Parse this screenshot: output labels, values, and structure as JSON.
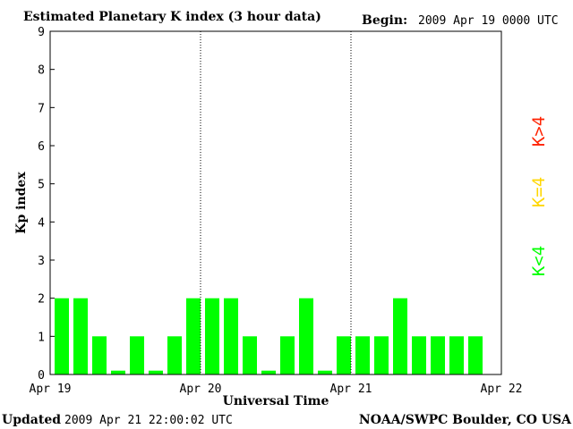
{
  "header": {
    "title": "Estimated Planetary K index (3 hour data)",
    "begin_label": "Begin:",
    "begin_value": "2009 Apr 19 0000 UTC"
  },
  "footer": {
    "updated_label": "Updated",
    "updated_value": "2009 Apr 21 22:00:02 UTC",
    "source": "NOAA/SWPC Boulder, CO USA"
  },
  "legend": [
    {
      "label": "K<4",
      "color": "#00ff00"
    },
    {
      "label": "K=4",
      "color": "#ffd700"
    },
    {
      "label": "K>4",
      "color": "#ff2200"
    }
  ],
  "chart_data": {
    "type": "bar",
    "title": "Estimated Planetary K index (3 hour data)",
    "xlabel": "Universal Time",
    "ylabel": "Kp index",
    "ylim": [
      0,
      9
    ],
    "yticks": [
      0,
      1,
      2,
      3,
      4,
      5,
      6,
      7,
      8,
      9
    ],
    "xticks": [
      "Apr 19",
      "Apr 20",
      "Apr 21",
      "Apr 22"
    ],
    "day_dividers": [
      "Apr 20",
      "Apr 21"
    ],
    "interval_hours": 3,
    "values": [
      2,
      2,
      1,
      0.1,
      1,
      0.1,
      1,
      2,
      2,
      2,
      1,
      0.1,
      1,
      2,
      0.1,
      1,
      1,
      1,
      2,
      1,
      1,
      1,
      1
    ],
    "bar_color": "#00ff00",
    "grid": false
  }
}
